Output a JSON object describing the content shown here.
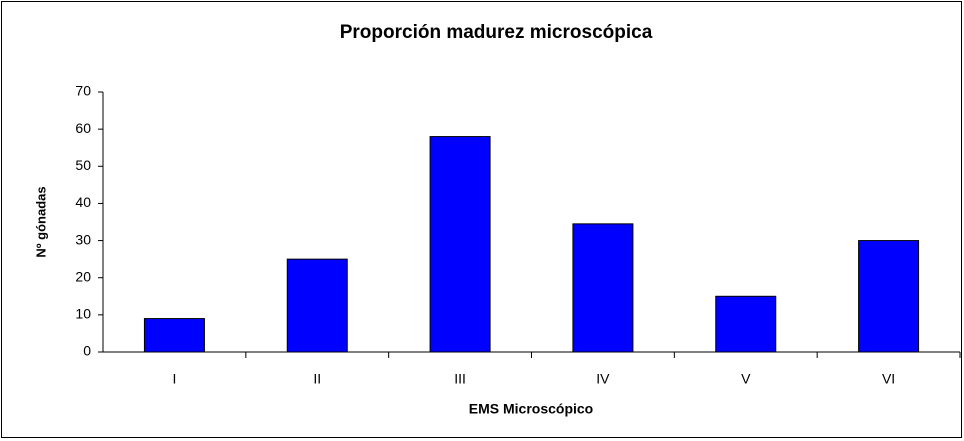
{
  "chart_data": {
    "type": "bar",
    "title": "Proporción madurez microscópica",
    "x_label": "EMS Microscópico",
    "y_label": "Nº gónadas",
    "categories": [
      "I",
      "II",
      "III",
      "IV",
      "V",
      "VI"
    ],
    "values": [
      9,
      25,
      58,
      34.5,
      15,
      30
    ],
    "color": "#0000ff",
    "ylim": [
      0,
      70
    ],
    "yticks": [
      0,
      10,
      20,
      30,
      40,
      50,
      60,
      70
    ],
    "grid": false
  }
}
